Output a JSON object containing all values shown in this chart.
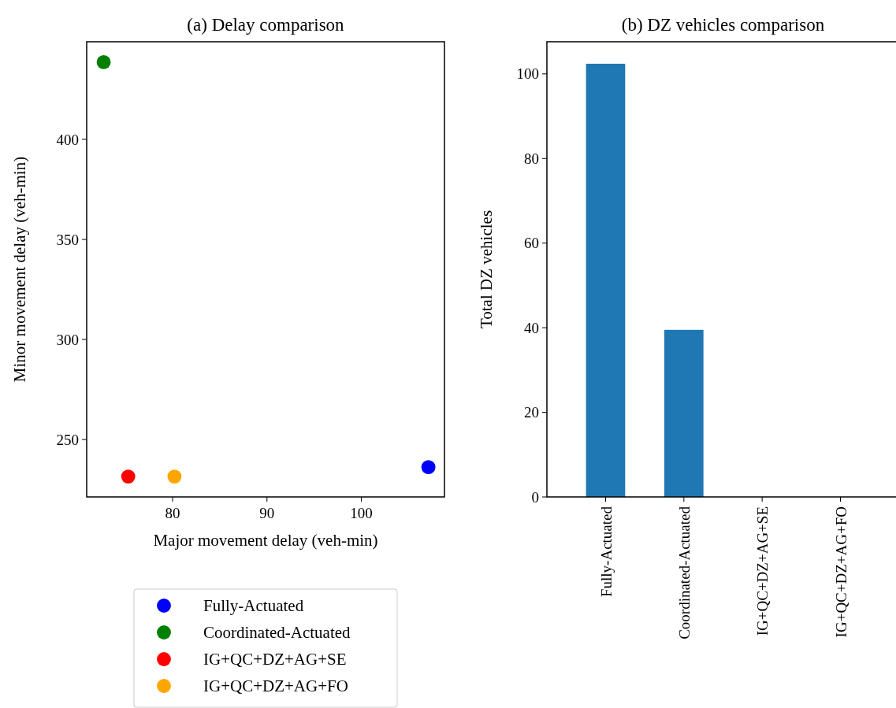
{
  "chart_data": [
    {
      "type": "scatter",
      "title": "(a) Delay comparison",
      "xlabel": "Major movement delay (veh-min)",
      "ylabel": "Minor movement delay (veh-min)",
      "xlim": [
        70.9,
        108.8
      ],
      "ylim": [
        221.3,
        448.8
      ],
      "xticks": [
        80,
        90,
        100
      ],
      "yticks": [
        250,
        300,
        350,
        400
      ],
      "legend": "bottom",
      "marker": "circle",
      "grid": false,
      "series": [
        {
          "name": "Fully-Actuated",
          "color": "#0000ff",
          "x": [
            107.1
          ],
          "values": [
            236.2
          ]
        },
        {
          "name": "Coordinated-Actuated",
          "color": "#008000",
          "x": [
            72.7
          ],
          "values": [
            438.6
          ]
        },
        {
          "name": "IG+QC+DZ+AG+SE",
          "color": "#ff0000",
          "x": [
            75.3
          ],
          "values": [
            231.5
          ]
        },
        {
          "name": "IG+QC+DZ+AG+FO",
          "color": "#ffa500",
          "x": [
            80.2
          ],
          "values": [
            231.5
          ]
        }
      ]
    },
    {
      "type": "bar",
      "title": "(b) DZ vehicles comparison",
      "ylabel": "Total DZ vehicles",
      "categories": [
        "Fully-Actuated",
        "Coordinated-Actuated",
        "IG+QC+DZ+AG+SE",
        "IG+QC+DZ+AG+FO"
      ],
      "values": [
        102.4,
        39.5,
        0,
        0
      ],
      "color": "#1f77b4",
      "ylim": [
        0,
        107.6
      ],
      "yticks": [
        0,
        20,
        40,
        60,
        80,
        100
      ],
      "grid": false
    }
  ]
}
